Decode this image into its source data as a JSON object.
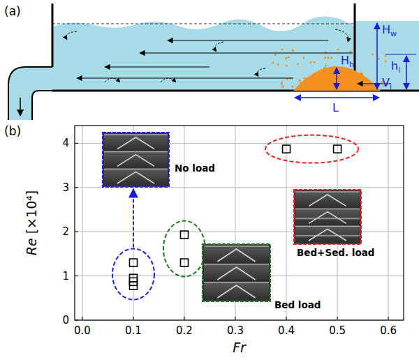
{
  "panel_labels": [
    "(a)",
    "(b)"
  ],
  "diagram": {
    "dims": {
      "Hw": {
        "base": "H",
        "sub": "w"
      },
      "Hh": {
        "base": "H",
        "sub": "h"
      },
      "Vi": {
        "base": "V",
        "sub": "i"
      },
      "hi": {
        "base": "h",
        "sub": "i"
      },
      "L": {
        "base": "L"
      }
    }
  },
  "chart_data": {
    "type": "scatter",
    "x_label": "Fr",
    "y_label": "Re [×10⁴]",
    "xlim": [
      -0.015,
      0.63
    ],
    "ylim": [
      0,
      4.4
    ],
    "xticks": [
      {
        "value": 0,
        "label": "0.0"
      },
      0.1,
      0.2,
      0.3,
      0.4,
      0.5,
      0.6
    ],
    "yticks": [
      0,
      1,
      2,
      3,
      4
    ],
    "grid": true,
    "marker": "square",
    "series": [
      {
        "name": "No load",
        "color": "#2323d6",
        "x": [
          0.1,
          0.1,
          0.1,
          0.1
        ],
        "values": [
          0.78,
          0.87,
          0.95,
          1.3
        ]
      },
      {
        "name": "Bed load",
        "color": "#1f7a1f",
        "x": [
          0.2,
          0.2
        ],
        "values": [
          1.3,
          1.93
        ]
      },
      {
        "name": "Bed+Sed. load",
        "color": "#e8231f",
        "x": [
          0.4,
          0.5
        ],
        "values": [
          3.87,
          3.87
        ]
      }
    ]
  }
}
